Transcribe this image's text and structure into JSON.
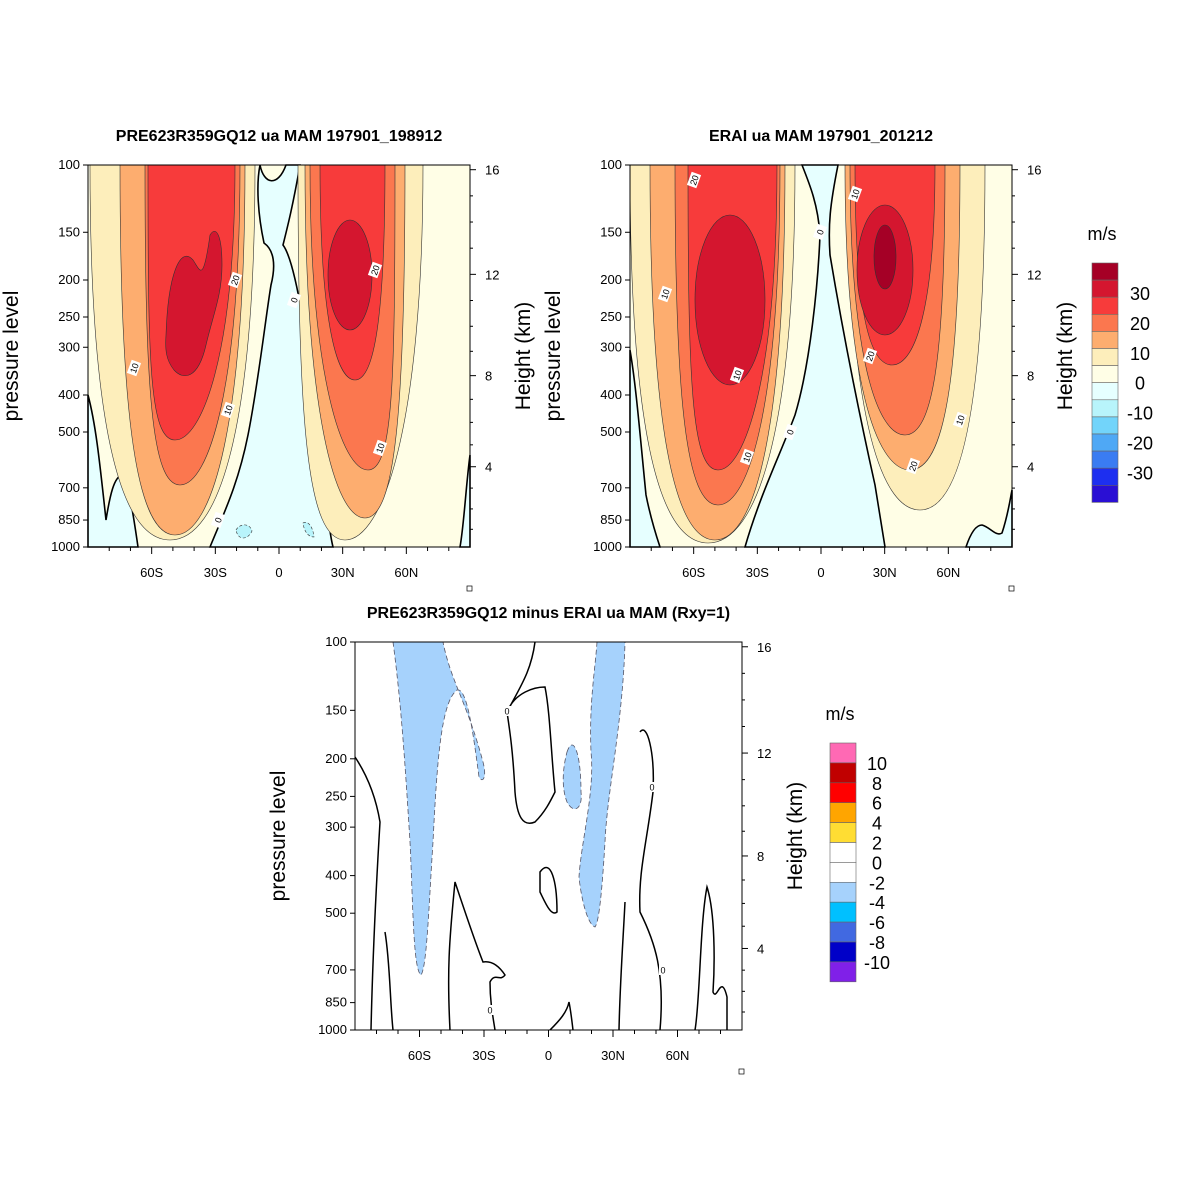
{
  "chart_data": [
    {
      "type": "heatmap",
      "subtype": "filled-contour",
      "title": "PRE623R359GQ12 ua MAM 197901_198912",
      "xlabel": "",
      "ylabel": "pressure level",
      "ylabel_right": "Height (km)",
      "xlim": [
        -90,
        90
      ],
      "ylim": [
        1000,
        100
      ],
      "yscale": "log",
      "x_ticks": [
        {
          "value": -60,
          "label": "60S"
        },
        {
          "value": -30,
          "label": "30S"
        },
        {
          "value": 0,
          "label": "0"
        },
        {
          "value": 30,
          "label": "30N"
        },
        {
          "value": 60,
          "label": "60N"
        }
      ],
      "y_ticks": [
        100,
        150,
        200,
        250,
        300,
        400,
        500,
        700,
        850,
        1000
      ],
      "y_right_ticks": [
        4,
        8,
        12,
        16
      ],
      "features": [
        {
          "name": "SH jet max",
          "lat": -45,
          "pressure": 200,
          "value_range": "25-30"
        },
        {
          "name": "NH jet max",
          "lat": 30,
          "pressure": 200,
          "value_range": "25-30"
        }
      ],
      "contour_labels": [
        "10",
        "20",
        "0",
        "10",
        "20",
        "10",
        "0"
      ]
    },
    {
      "type": "heatmap",
      "subtype": "filled-contour",
      "title": "ERAI ua MAM 197901_201212",
      "xlabel": "",
      "ylabel": "pressure level",
      "ylabel_right": "Height (km)",
      "xlim": [
        -90,
        90
      ],
      "ylim": [
        1000,
        100
      ],
      "yscale": "log",
      "x_ticks": [
        {
          "value": -60,
          "label": "60S"
        },
        {
          "value": -30,
          "label": "30S"
        },
        {
          "value": 0,
          "label": "0"
        },
        {
          "value": 30,
          "label": "30N"
        },
        {
          "value": 60,
          "label": "60N"
        }
      ],
      "y_ticks": [
        100,
        150,
        200,
        250,
        300,
        400,
        500,
        700,
        850,
        1000
      ],
      "y_right_ticks": [
        4,
        8,
        12,
        16
      ],
      "features": [
        {
          "name": "SH jet max",
          "lat": -40,
          "pressure": 250,
          "value_range": "25-30"
        },
        {
          "name": "NH jet max",
          "lat": 30,
          "pressure": 190,
          "value_range": ">30"
        }
      ],
      "contour_labels": [
        "20",
        "10",
        "0",
        "10",
        "20",
        "0",
        "10",
        "10",
        "20",
        "10"
      ],
      "colorbar": {
        "title": "m/s",
        "labels": [
          "30",
          "20",
          "10",
          "0",
          "-10",
          "-20",
          "-30"
        ],
        "levels": [
          -35,
          -30,
          -25,
          -20,
          -15,
          -10,
          -5,
          0,
          5,
          10,
          15,
          20,
          25,
          30,
          35
        ],
        "colors": [
          "#a50026",
          "#d4162f",
          "#f73b3b",
          "#fb774f",
          "#fdad6f",
          "#fdeebb",
          "#fffee6",
          "#e6ffff",
          "#b8f4fb",
          "#72d4fa",
          "#4fa8f5",
          "#3a7cf2",
          "#1d2ff0",
          "#2a0fd4"
        ]
      }
    },
    {
      "type": "heatmap",
      "subtype": "filled-contour",
      "title": "PRE623R359GQ12 minus ERAI ua MAM (Rxy=1)",
      "xlabel": "",
      "ylabel": "pressure level",
      "ylabel_right": "Height (km)",
      "xlim": [
        -90,
        90
      ],
      "ylim": [
        1000,
        100
      ],
      "yscale": "log",
      "x_ticks": [
        {
          "value": -60,
          "label": "60S"
        },
        {
          "value": -30,
          "label": "30S"
        },
        {
          "value": 0,
          "label": "0"
        },
        {
          "value": 30,
          "label": "30N"
        },
        {
          "value": 60,
          "label": "60N"
        }
      ],
      "y_ticks": [
        100,
        150,
        200,
        250,
        300,
        400,
        500,
        700,
        850,
        1000
      ],
      "y_right_ticks": [
        4,
        8,
        12,
        16
      ],
      "features": [
        {
          "name": "negative band SH",
          "lat": -60,
          "pressure_range": [
            100,
            720
          ],
          "value_range": "-4 to -2"
        },
        {
          "name": "negative band NH",
          "lat": 20,
          "pressure_range": [
            100,
            520
          ],
          "value_range": "-4 to -2"
        }
      ],
      "contour_labels": [
        "0",
        "0",
        "0",
        "0"
      ],
      "colorbar": {
        "title": "m/s",
        "labels": [
          "10",
          "8",
          "6",
          "4",
          "2",
          "0",
          "-2",
          "-4",
          "-6",
          "-8",
          "-10"
        ],
        "levels": [
          -10,
          -8,
          -6,
          -4,
          -2,
          0,
          2,
          4,
          6,
          8,
          10
        ],
        "colors": [
          "#ff69b4",
          "#c00000",
          "#ff0000",
          "#ffa500",
          "#ffdd33",
          "#ffffff",
          "#ffffff",
          "#a6d2fc",
          "#00c0ff",
          "#4169e1",
          "#0000c8",
          "#8020e8"
        ]
      }
    }
  ]
}
